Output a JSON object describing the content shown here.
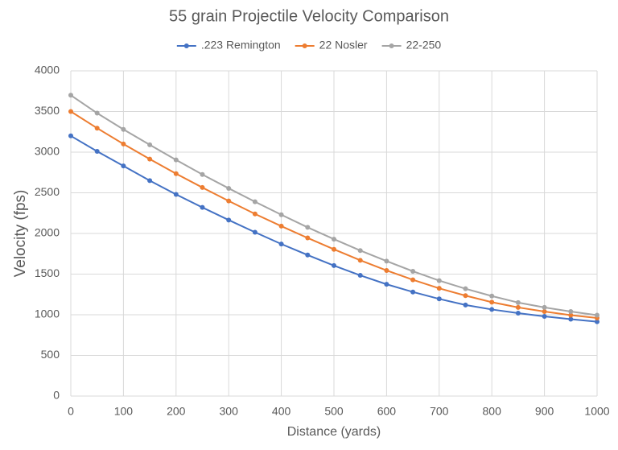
{
  "chart_data": {
    "type": "line",
    "title": "55 grain Projectile Velocity Comparison",
    "x_label": "Distance (yards)",
    "y_label": "Velocity (fps)",
    "x": [
      0,
      50,
      100,
      150,
      200,
      250,
      300,
      350,
      400,
      450,
      500,
      550,
      600,
      650,
      700,
      750,
      800,
      850,
      900,
      950,
      1000
    ],
    "series": [
      {
        "name": ".223 Remington",
        "color": "#4472c4",
        "values": [
          3200,
          3010,
          2830,
          2650,
          2480,
          2320,
          2165,
          2015,
          1870,
          1735,
          1605,
          1485,
          1375,
          1280,
          1195,
          1120,
          1065,
          1020,
          980,
          945,
          915
        ]
      },
      {
        "name": "22 Nosler",
        "color": "#ed7d31",
        "values": [
          3500,
          3295,
          3100,
          2915,
          2735,
          2565,
          2400,
          2240,
          2090,
          1945,
          1805,
          1670,
          1545,
          1430,
          1325,
          1235,
          1155,
          1090,
          1040,
          995,
          960
        ]
      },
      {
        "name": "22-250",
        "color": "#a5a5a5",
        "values": [
          3700,
          3480,
          3280,
          3090,
          2905,
          2725,
          2555,
          2390,
          2230,
          2075,
          1930,
          1790,
          1660,
          1535,
          1420,
          1320,
          1230,
          1150,
          1090,
          1040,
          995
        ]
      }
    ],
    "xlim": [
      0,
      1000
    ],
    "xticks": [
      0,
      100,
      200,
      300,
      400,
      500,
      600,
      700,
      800,
      900,
      1000
    ],
    "ylim": [
      0,
      4000
    ],
    "yticks": [
      0,
      500,
      1000,
      1500,
      2000,
      2500,
      3000,
      3500,
      4000
    ],
    "grid": true,
    "legend": "top"
  }
}
